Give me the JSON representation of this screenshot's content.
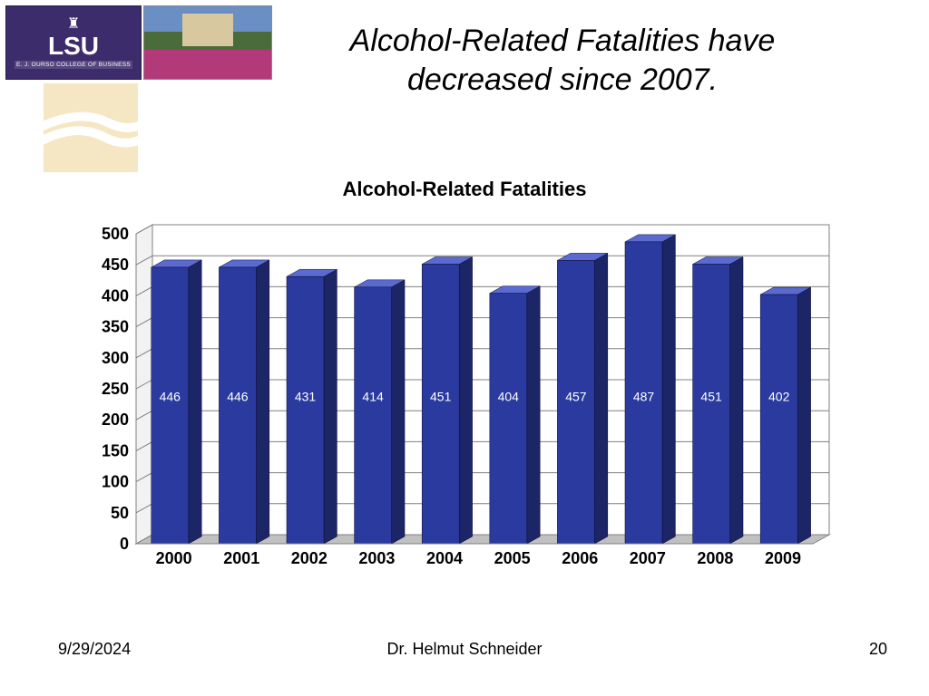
{
  "header": {
    "lsu_text": "LSU",
    "lsu_sub": "E. J. OURSO COLLEGE OF BUSINESS"
  },
  "slide": {
    "title_line1": "Alcohol-Related Fatalities have",
    "title_line2": "decreased since 2007."
  },
  "chart": {
    "type": "bar",
    "title": "Alcohol-Related Fatalities",
    "categories": [
      "2000",
      "2001",
      "2002",
      "2003",
      "2004",
      "2005",
      "2006",
      "2007",
      "2008",
      "2009"
    ],
    "values": [
      446,
      446,
      431,
      414,
      451,
      404,
      457,
      487,
      451,
      402
    ],
    "bar_face_color": "#2b3a9e",
    "bar_top_color": "#5a6ad0",
    "bar_side_color": "#1c2566",
    "data_label_color": "#ffffff",
    "data_label_fontsize": 14,
    "ylim": [
      0,
      500
    ],
    "ytick_step": 50,
    "ytick_labels": [
      "0",
      "50",
      "100",
      "150",
      "200",
      "250",
      "300",
      "350",
      "400",
      "450",
      "500"
    ],
    "axis_label_fontsize": 18,
    "axis_label_weight": "bold",
    "axis_label_color": "#000000",
    "grid_color": "#808080",
    "back_wall_color": "#ffffff",
    "floor_color": "#c0c0c0",
    "plot_border_color": "#808080",
    "bar_width_ratio": 0.55,
    "depth_dx": 18,
    "depth_dy": 10
  },
  "footer": {
    "date": "9/29/2024",
    "author": "Dr. Helmut Schneider",
    "page": "20"
  }
}
